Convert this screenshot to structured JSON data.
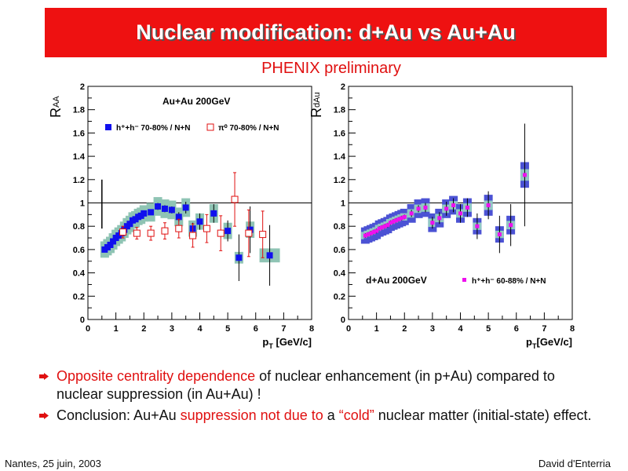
{
  "slide": {
    "title": "Nuclear modification: d+Au vs Au+Au",
    "subtitle": "PHENIX preliminary",
    "footer_left": "Nantes, 25 juin, 2003",
    "footer_right": "David d'Enterria",
    "bullets": [
      {
        "parts": [
          {
            "text": "Opposite centrality dependence",
            "red": true
          },
          {
            "text": " of nuclear enhancement (in p+Au) compared to nuclear suppression (in Au+Au) !",
            "red": false
          }
        ]
      },
      {
        "parts": [
          {
            "text": "Conclusion: Au+Au ",
            "red": false
          },
          {
            "text": "suppression not due to",
            "red": true
          },
          {
            "text": " a ",
            "red": false
          },
          {
            "text": "“cold”",
            "red": true
          },
          {
            "text": " nuclear matter (initial-state) effect.",
            "red": false
          }
        ]
      }
    ]
  },
  "chart_data": [
    {
      "type": "scatter",
      "title": "Au+Au 200GeV",
      "ylabel_main": "R",
      "ylabel_sub": "AA",
      "xlabel_main": "p",
      "xlabel_sub": "T",
      "xlabel_unit": " [GeV/c]",
      "xlim": [
        0,
        8
      ],
      "ylim": [
        0,
        2
      ],
      "xticks": [
        0,
        1,
        2,
        3,
        4,
        5,
        6,
        7,
        8
      ],
      "xtick_labels": [
        "0",
        "1",
        "2",
        "3",
        "4",
        "5",
        "6",
        "7",
        "8"
      ],
      "yticks": [
        0,
        0.2,
        0.4,
        0.6,
        0.8,
        1,
        1.2,
        1.4,
        1.6,
        1.8,
        2
      ],
      "ytick_labels": [
        "0",
        "0.2",
        "0.4",
        "0.6",
        "0.8",
        "1",
        "1.2",
        "1.4",
        "1.6",
        "1.8",
        "2"
      ],
      "reference_line": 1,
      "norm_uncertainty": {
        "x": 0.5,
        "low": 0.78,
        "high": 1.2
      },
      "legend_position": "top",
      "series": [
        {
          "name": "h⁺+h⁻ 70-80% / N+N",
          "marker": "filled-square",
          "color": "#1010ee",
          "syst_color": "#8fc4b4",
          "points": [
            {
              "x": 0.6,
              "y": 0.6,
              "err": 0.02,
              "syst": 0.07
            },
            {
              "x": 0.7,
              "y": 0.62,
              "err": 0.02,
              "syst": 0.07
            },
            {
              "x": 0.8,
              "y": 0.64,
              "err": 0.02,
              "syst": 0.07
            },
            {
              "x": 0.9,
              "y": 0.67,
              "err": 0.02,
              "syst": 0.07
            },
            {
              "x": 1.0,
              "y": 0.7,
              "err": 0.02,
              "syst": 0.07
            },
            {
              "x": 1.1,
              "y": 0.72,
              "err": 0.02,
              "syst": 0.07
            },
            {
              "x": 1.2,
              "y": 0.74,
              "err": 0.02,
              "syst": 0.07
            },
            {
              "x": 1.3,
              "y": 0.77,
              "err": 0.02,
              "syst": 0.07
            },
            {
              "x": 1.4,
              "y": 0.8,
              "err": 0.02,
              "syst": 0.07
            },
            {
              "x": 1.5,
              "y": 0.82,
              "err": 0.02,
              "syst": 0.07
            },
            {
              "x": 1.6,
              "y": 0.85,
              "err": 0.02,
              "syst": 0.07
            },
            {
              "x": 1.7,
              "y": 0.86,
              "err": 0.02,
              "syst": 0.07
            },
            {
              "x": 1.8,
              "y": 0.88,
              "err": 0.02,
              "syst": 0.07
            },
            {
              "x": 1.9,
              "y": 0.89,
              "err": 0.02,
              "syst": 0.07
            },
            {
              "x": 2.0,
              "y": 0.91,
              "err": 0.02,
              "syst": 0.07
            },
            {
              "x": 2.25,
              "y": 0.92,
              "err": 0.02,
              "syst": 0.08
            },
            {
              "x": 2.5,
              "y": 0.97,
              "err": 0.03,
              "syst": 0.08
            },
            {
              "x": 2.75,
              "y": 0.95,
              "err": 0.03,
              "syst": 0.08
            },
            {
              "x": 3.0,
              "y": 0.94,
              "err": 0.03,
              "syst": 0.08
            },
            {
              "x": 3.25,
              "y": 0.88,
              "err": 0.04,
              "syst": 0.08
            },
            {
              "x": 3.5,
              "y": 0.96,
              "err": 0.05,
              "syst": 0.08
            },
            {
              "x": 3.75,
              "y": 0.78,
              "err": 0.05,
              "syst": 0.07
            },
            {
              "x": 4.0,
              "y": 0.84,
              "err": 0.07,
              "syst": 0.07
            },
            {
              "x": 4.5,
              "y": 0.91,
              "err": 0.08,
              "syst": 0.08
            },
            {
              "x": 5.0,
              "y": 0.76,
              "err": 0.09,
              "syst": 0.07
            },
            {
              "x": 5.4,
              "y": 0.53,
              "err": 0.2,
              "syst": 0.05
            },
            {
              "x": 5.8,
              "y": 0.77,
              "err": 0.2,
              "syst": 0.07
            },
            {
              "x": 6.5,
              "y": 0.55,
              "err": 0.26,
              "syst": 0.06,
              "wide": true
            }
          ]
        },
        {
          "name": "π⁰ 70-80% / N+N",
          "marker": "open-square",
          "color": "#e01010",
          "points": [
            {
              "x": 1.25,
              "y": 0.75,
              "err": 0.05
            },
            {
              "x": 1.75,
              "y": 0.74,
              "err": 0.05
            },
            {
              "x": 2.25,
              "y": 0.74,
              "err": 0.06
            },
            {
              "x": 2.75,
              "y": 0.76,
              "err": 0.07
            },
            {
              "x": 3.25,
              "y": 0.78,
              "err": 0.08
            },
            {
              "x": 3.75,
              "y": 0.72,
              "err": 0.1
            },
            {
              "x": 4.25,
              "y": 0.78,
              "err": 0.12
            },
            {
              "x": 4.75,
              "y": 0.74,
              "err": 0.15
            },
            {
              "x": 5.25,
              "y": 1.03,
              "err": 0.23
            },
            {
              "x": 5.75,
              "y": 0.74,
              "err": 0.2
            },
            {
              "x": 6.25,
              "y": 0.73,
              "err": 0.2
            }
          ]
        }
      ]
    },
    {
      "type": "scatter",
      "title": "d+Au 200GeV",
      "ylabel_main": "R",
      "ylabel_sub": "dAu",
      "xlabel_main": "p",
      "xlabel_sub": "T",
      "xlabel_unit": "[GeV/c]",
      "xlim": [
        0,
        8
      ],
      "ylim": [
        0,
        2
      ],
      "xticks": [
        0,
        1,
        2,
        3,
        4,
        5,
        6,
        7,
        8
      ],
      "xtick_labels": [
        "0",
        "1",
        "2",
        "3",
        "4",
        "5",
        "6",
        "7",
        "8"
      ],
      "yticks": [
        0,
        0.2,
        0.4,
        0.6,
        0.8,
        1,
        1.2,
        1.4,
        1.6,
        1.8,
        2
      ],
      "ytick_labels": [
        "0",
        "0.2",
        "0.4",
        "0.6",
        "0.8",
        "1",
        "1.2",
        "1.4",
        "1.6",
        "1.8",
        "2"
      ],
      "reference_line": 1,
      "legend_position": "bottom",
      "series": [
        {
          "name": "h⁺+h⁻ 60-88% / N+N",
          "marker": "filled-square",
          "color": "#ee10ee",
          "syst_color": "#4b52d4",
          "syst_inner_color": "#93c9c4",
          "points": [
            {
              "x": 0.6,
              "y": 0.72,
              "err": 0.02,
              "syst": 0.07
            },
            {
              "x": 0.7,
              "y": 0.73,
              "err": 0.02,
              "syst": 0.07
            },
            {
              "x": 0.8,
              "y": 0.74,
              "err": 0.02,
              "syst": 0.07
            },
            {
              "x": 0.9,
              "y": 0.75,
              "err": 0.02,
              "syst": 0.07
            },
            {
              "x": 1.0,
              "y": 0.76,
              "err": 0.02,
              "syst": 0.07
            },
            {
              "x": 1.1,
              "y": 0.78,
              "err": 0.02,
              "syst": 0.07
            },
            {
              "x": 1.2,
              "y": 0.79,
              "err": 0.02,
              "syst": 0.07
            },
            {
              "x": 1.3,
              "y": 0.8,
              "err": 0.02,
              "syst": 0.07
            },
            {
              "x": 1.4,
              "y": 0.81,
              "err": 0.02,
              "syst": 0.07
            },
            {
              "x": 1.5,
              "y": 0.83,
              "err": 0.02,
              "syst": 0.07
            },
            {
              "x": 1.6,
              "y": 0.84,
              "err": 0.02,
              "syst": 0.07
            },
            {
              "x": 1.7,
              "y": 0.85,
              "err": 0.02,
              "syst": 0.07
            },
            {
              "x": 1.8,
              "y": 0.86,
              "err": 0.02,
              "syst": 0.07
            },
            {
              "x": 1.9,
              "y": 0.87,
              "err": 0.02,
              "syst": 0.07
            },
            {
              "x": 2.0,
              "y": 0.88,
              "err": 0.02,
              "syst": 0.07
            },
            {
              "x": 2.25,
              "y": 0.91,
              "err": 0.03,
              "syst": 0.08
            },
            {
              "x": 2.5,
              "y": 0.95,
              "err": 0.03,
              "syst": 0.08
            },
            {
              "x": 2.75,
              "y": 0.96,
              "err": 0.04,
              "syst": 0.08
            },
            {
              "x": 3.0,
              "y": 0.83,
              "err": 0.05,
              "syst": 0.08
            },
            {
              "x": 3.25,
              "y": 0.87,
              "err": 0.05,
              "syst": 0.08
            },
            {
              "x": 3.5,
              "y": 0.95,
              "err": 0.06,
              "syst": 0.08
            },
            {
              "x": 3.75,
              "y": 0.98,
              "err": 0.06,
              "syst": 0.08
            },
            {
              "x": 4.0,
              "y": 0.91,
              "err": 0.08,
              "syst": 0.08
            },
            {
              "x": 4.25,
              "y": 0.96,
              "err": 0.08,
              "syst": 0.08
            },
            {
              "x": 4.6,
              "y": 0.8,
              "err": 0.11,
              "syst": 0.07
            },
            {
              "x": 5.0,
              "y": 0.98,
              "err": 0.12,
              "syst": 0.09
            },
            {
              "x": 5.4,
              "y": 0.73,
              "err": 0.16,
              "syst": 0.07
            },
            {
              "x": 5.8,
              "y": 0.81,
              "err": 0.18,
              "syst": 0.08
            },
            {
              "x": 6.3,
              "y": 1.24,
              "err": 0.44,
              "syst": 0.11
            }
          ]
        }
      ]
    }
  ]
}
